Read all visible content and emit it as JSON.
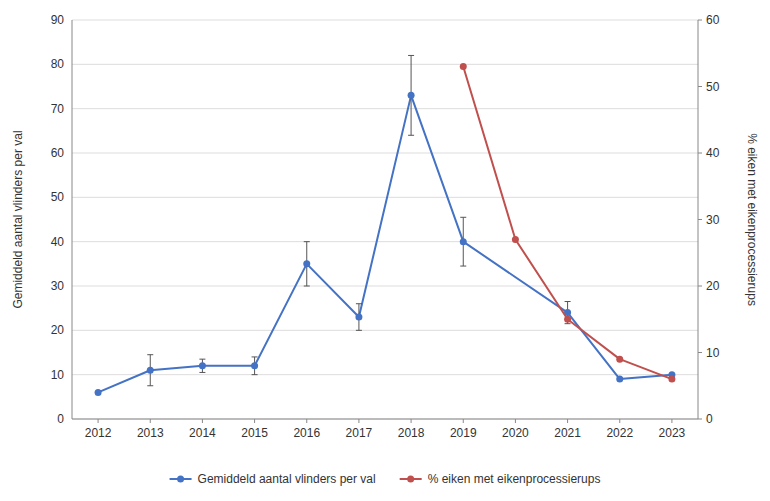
{
  "chart_data": {
    "type": "line",
    "series": [
      {
        "name": "Gemiddeld aantal vlinders per val",
        "color": "#4472C4",
        "marker": "circle",
        "x": [
          2012,
          2013,
          2014,
          2015,
          2016,
          2017,
          2018,
          2019,
          2021,
          2022,
          2023
        ],
        "values": [
          6,
          11,
          12,
          12,
          35,
          23,
          73,
          40,
          24,
          9,
          10
        ],
        "errors": [
          0,
          3.5,
          1.5,
          2.0,
          5.0,
          3.0,
          9.0,
          5.5,
          2.5,
          0,
          0
        ]
      },
      {
        "name": "% eiken met eikenprocessierups",
        "color": "#C0504D",
        "marker": "circle",
        "axis": "y2",
        "x": [
          2019,
          2020,
          2021,
          2022,
          2023
        ],
        "values": [
          53,
          27,
          15,
          9,
          6
        ]
      }
    ],
    "ylabel": "Gemiddeld aantal vlinders per val",
    "y2label": "% eiken met eikenprocessierups",
    "xlim": [
      2011.5,
      2023.5
    ],
    "xticks": [
      2012,
      2013,
      2014,
      2015,
      2016,
      2017,
      2018,
      2019,
      2020,
      2021,
      2022,
      2023
    ],
    "ylim": [
      0,
      90
    ],
    "yticks": [
      0,
      10,
      20,
      30,
      40,
      50,
      60,
      70,
      80,
      90
    ],
    "y2lim": [
      0,
      60
    ],
    "y2ticks": [
      0,
      10,
      20,
      30,
      40,
      50,
      60
    ],
    "grid": true,
    "legend": "bottom"
  }
}
